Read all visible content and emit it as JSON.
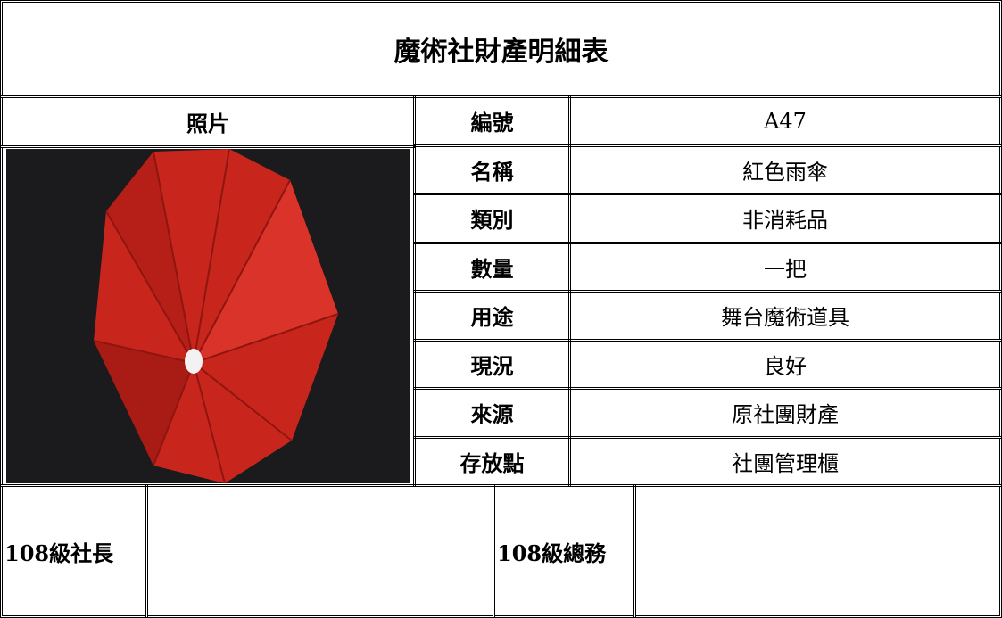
{
  "title": "魔術社財產明細表",
  "photo_label": "照片",
  "fields": [
    {
      "label": "編號",
      "value": "A47"
    },
    {
      "label": "名稱",
      "value": "紅色雨傘"
    },
    {
      "label": "類別",
      "value": "非消耗品"
    },
    {
      "label": "數量",
      "value": "一把"
    },
    {
      "label": "用途",
      "value": "舞台魔術道具"
    },
    {
      "label": "現況",
      "value": "良好"
    },
    {
      "label": "來源",
      "value": "原社團財產"
    },
    {
      "label": "存放點",
      "value": "社團管理櫃"
    }
  ],
  "signatures": [
    "108級社長",
    "108級總務"
  ]
}
